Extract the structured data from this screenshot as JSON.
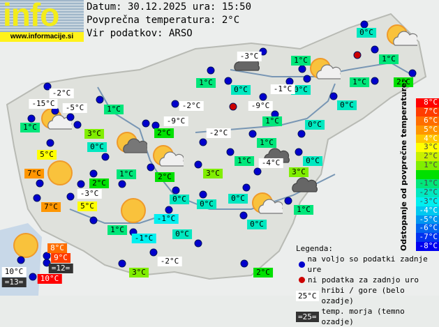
{
  "logo": {
    "word": "info",
    "url": "www.informacije.si"
  },
  "header": {
    "date_line": "Datum: 30.12.2025 ura: 15:50",
    "avg_line": "Povprečna temperatura: 2°C",
    "source_line": "Vir podatkov: ARSO"
  },
  "average_temperature": 2,
  "colors": {
    "dot_available": "#0000cc",
    "dot_missing": "#cc0000",
    "sea_bg": "#333333",
    "hill_bg": "#ffffff"
  },
  "scale": {
    "title": "Odstopanje od povprečne temperature:",
    "steps": [
      {
        "label": "8°C",
        "dev": 8,
        "color": "#ff0000"
      },
      {
        "label": "7°C",
        "dev": 7,
        "color": "#ff3c00"
      },
      {
        "label": "6°C",
        "dev": 6,
        "color": "#ff6e00"
      },
      {
        "label": "5°C",
        "dev": 5,
        "color": "#ff9600"
      },
      {
        "label": "4°C",
        "dev": 4,
        "color": "#ffc800"
      },
      {
        "label": "3°C",
        "dev": 3,
        "color": "#ffff00"
      },
      {
        "label": "2°C",
        "dev": 2,
        "color": "#c8f000"
      },
      {
        "label": "1°C",
        "dev": 1,
        "color": "#80ee00"
      },
      {
        "label": "",
        "dev": 0,
        "color": "#00e000"
      },
      {
        "label": "-1°C",
        "dev": -1,
        "color": "#00e67a"
      },
      {
        "label": "-2°C",
        "dev": -2,
        "color": "#00e8c0"
      },
      {
        "label": "-3°C",
        "dev": -3,
        "color": "#00f0f0"
      },
      {
        "label": "-4°C",
        "dev": -4,
        "color": "#00c8f0"
      },
      {
        "label": "-5°C",
        "dev": -5,
        "color": "#0096f0"
      },
      {
        "label": "-6°C",
        "dev": -6,
        "color": "#0064f0"
      },
      {
        "label": "-7°C",
        "dev": -7,
        "color": "#0032f0"
      },
      {
        "label": "-8°C",
        "dev": -8,
        "color": "#0000f0"
      }
    ]
  },
  "stations": [
    {
      "label": "0°C",
      "t": 0,
      "type": "normal"
    },
    {
      "label": "1°C",
      "t": 1,
      "type": "normal"
    },
    {
      "label": "2°C",
      "t": 2,
      "type": "normal"
    },
    {
      "label": "1°C",
      "t": 1,
      "type": "normal"
    },
    {
      "label": "1°C",
      "t": 1,
      "type": "normal"
    },
    {
      "label": "0°C",
      "t": 0,
      "type": "normal"
    },
    {
      "label": "-1°C",
      "t": -1,
      "type": "hill"
    },
    {
      "label": "-3°C",
      "t": -3,
      "type": "hill"
    },
    {
      "label": "1°C",
      "t": 1,
      "type": "normal"
    },
    {
      "label": "0°C",
      "t": 0,
      "type": "normal"
    },
    {
      "label": "-9°C",
      "t": -9,
      "type": "hill"
    },
    {
      "label": "0°C",
      "t": 0,
      "type": "normal"
    },
    {
      "label": "1°C",
      "t": 1,
      "type": "normal"
    },
    {
      "label": "0°C",
      "t": 0,
      "type": "normal"
    },
    {
      "label": "-2°C",
      "t": -2,
      "type": "hill"
    },
    {
      "label": "1°C",
      "t": 1,
      "type": "normal"
    },
    {
      "label": "1°C",
      "t": 1,
      "type": "normal"
    },
    {
      "label": "-4°C",
      "t": -4,
      "type": "hill"
    },
    {
      "label": "0°C",
      "t": 0,
      "type": "normal"
    },
    {
      "label": "3°C",
      "t": 3,
      "type": "normal"
    },
    {
      "label": "-2°C",
      "t": -2,
      "type": "hill"
    },
    {
      "label": "1°C",
      "t": 1,
      "type": "normal"
    },
    {
      "label": "-15°C",
      "t": -15,
      "type": "hill"
    },
    {
      "label": "-5°C",
      "t": -5,
      "type": "hill"
    },
    {
      "label": "1°C",
      "t": 1,
      "type": "normal"
    },
    {
      "label": "3°C",
      "t": 3,
      "type": "normal"
    },
    {
      "label": "-2°C",
      "t": -2,
      "type": "hill"
    },
    {
      "label": "-9°C",
      "t": -9,
      "type": "hill"
    },
    {
      "label": "2°C",
      "t": 2,
      "type": "normal"
    },
    {
      "label": "0°C",
      "t": 0,
      "type": "normal"
    },
    {
      "label": "5°C",
      "t": 5,
      "type": "normal"
    },
    {
      "label": "7°C",
      "t": 7,
      "type": "normal"
    },
    {
      "label": "1°C",
      "t": 1,
      "type": "normal"
    },
    {
      "label": "2°C",
      "t": 2,
      "type": "normal"
    },
    {
      "label": "2°C",
      "t": 2,
      "type": "normal"
    },
    {
      "label": "3°C",
      "t": 3,
      "type": "normal"
    },
    {
      "label": "7°C",
      "t": 7,
      "type": "normal"
    },
    {
      "label": "-3°C",
      "t": -3,
      "type": "hill"
    },
    {
      "label": "5°C",
      "t": 5,
      "type": "normal"
    },
    {
      "label": "0°C",
      "t": 0,
      "type": "normal"
    },
    {
      "label": "0°C",
      "t": 0,
      "type": "normal"
    },
    {
      "label": "0°C",
      "t": 0,
      "type": "normal"
    },
    {
      "label": "1°C",
      "t": 1,
      "type": "normal"
    },
    {
      "label": "-1°C",
      "t": -1,
      "type": "normal"
    },
    {
      "label": "0°C",
      "t": 0,
      "type": "normal"
    },
    {
      "label": "1°C",
      "t": 1,
      "type": "normal"
    },
    {
      "label": "-1°C",
      "t": -1,
      "type": "normal"
    },
    {
      "label": "0°C",
      "t": 0,
      "type": "normal"
    },
    {
      "label": "8°C",
      "t": 8,
      "type": "normal"
    },
    {
      "label": "9°C",
      "t": 9,
      "type": "normal"
    },
    {
      "label": "=12=",
      "t": 12,
      "type": "sea"
    },
    {
      "label": "10°C",
      "t": 10,
      "type": "hill"
    },
    {
      "label": "=13=",
      "t": 13,
      "type": "sea"
    },
    {
      "label": "10°C",
      "t": 10,
      "type": "normal"
    },
    {
      "label": "3°C",
      "t": 3,
      "type": "normal"
    },
    {
      "label": "-2°C",
      "t": -2,
      "type": "hill"
    },
    {
      "label": "2°C",
      "t": 2,
      "type": "normal"
    }
  ],
  "station_points": [
    "available",
    "missing",
    "available",
    "available",
    "available",
    "available",
    "available",
    "available",
    "available",
    "available",
    "available",
    "available",
    "missing",
    "available",
    "available",
    "available",
    "available",
    "available",
    "available",
    "available",
    "available",
    "available",
    "available",
    "available",
    "available",
    "available",
    "available",
    "available",
    "available",
    "available",
    "available",
    "available",
    "available",
    "available",
    "available",
    "available",
    "available",
    "available",
    "available",
    "available",
    "available",
    "available",
    "available",
    "available",
    "available",
    "available",
    "available",
    "available",
    "available",
    "available",
    "available",
    "available",
    "available",
    "available",
    "available",
    "available"
  ],
  "weather_icons": [
    "partly-cloudy",
    "partly-cloudy",
    "partly-cloudy",
    "partly-cloudy",
    "partly-cloudy",
    "partly-cloudy-dark",
    "cloudy-dark",
    "cloudy-dark",
    "cloudy-dark",
    "sunny",
    "sunny",
    "sunny"
  ],
  "legend": {
    "title": "Legenda:",
    "available": "na voljo so podatki zadnje ure",
    "missing": "ni podatka za zadnjo uro",
    "hill_sample": "25°C",
    "hill_text": "hribi / gore (belo ozadje)",
    "sea_sample": "=25=",
    "sea_text": "temp. morja (temno ozadje)"
  }
}
